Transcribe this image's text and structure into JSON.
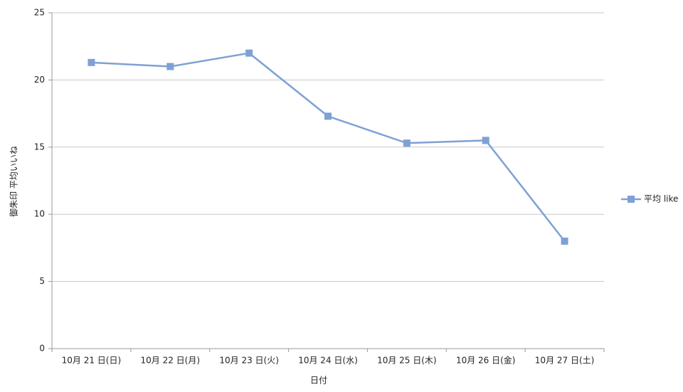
{
  "chart_data": {
    "type": "line",
    "x_label": "日付",
    "y_label": "御朱印 平均いいね",
    "categories": [
      "10月 21 日(日)",
      "10月 22 日(月)",
      "10月 23 日(火)",
      "10月 24 日(水)",
      "10月 25 日(木)",
      "10月 26 日(金)",
      "10月 27 日(土)"
    ],
    "series": [
      {
        "name": "平均 like",
        "color": "#7da1d4",
        "values": [
          21.3,
          21.0,
          22.0,
          17.3,
          15.3,
          15.5,
          8.0
        ]
      }
    ],
    "ylim": [
      0,
      25
    ],
    "yticks": [
      0,
      5,
      10,
      15,
      20,
      25
    ],
    "grid": true,
    "legend": "right"
  }
}
